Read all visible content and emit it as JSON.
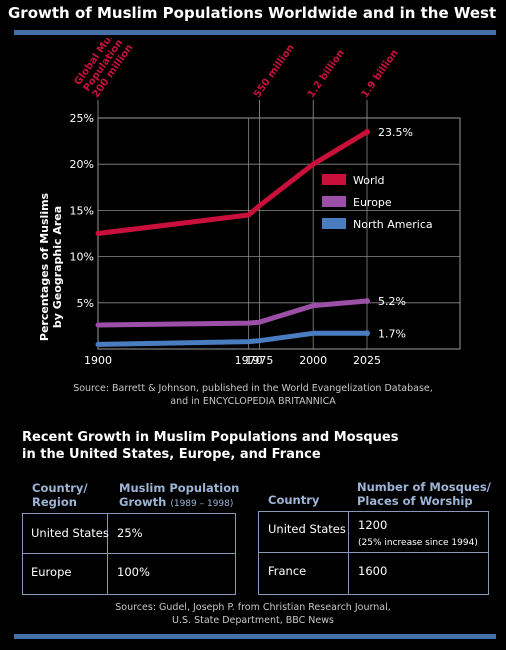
{
  "header": {
    "title": "Growth of Muslim Populations Worldwide and in the West"
  },
  "chart_data": {
    "type": "line",
    "x": [
      1900,
      1970,
      1975,
      2000,
      2025
    ],
    "x_tick_labels": [
      "1900",
      "1970",
      "1975",
      "2000",
      "2025"
    ],
    "ylim": [
      0,
      25
    ],
    "y_ticks": [
      5,
      10,
      15,
      20,
      25
    ],
    "y_tick_labels": [
      "5%",
      "10%",
      "15%",
      "20%",
      "25%"
    ],
    "ylabel_line1": "Percentages of Muslims",
    "ylabel_line2": "by Geographic Area",
    "grid": true,
    "legend_position": "right",
    "series": [
      {
        "name": "World",
        "color": "#c8103a",
        "values": [
          12.5,
          14.5,
          15.5,
          20.0,
          23.5
        ],
        "end_label": "23.5%"
      },
      {
        "name": "Europe",
        "color": "#9b4fa6",
        "values": [
          2.6,
          2.8,
          2.9,
          4.7,
          5.2
        ],
        "end_label": "5.2%"
      },
      {
        "name": "North America",
        "color": "#4a7cc0",
        "values": [
          0.5,
          0.8,
          0.9,
          1.7,
          1.7
        ],
        "end_label": "1.7%"
      }
    ],
    "top_annotations": [
      {
        "x": 1900,
        "lines": [
          "Global Muslim",
          "Population",
          "200 million"
        ]
      },
      {
        "x": 1975,
        "lines": [
          "550 million"
        ]
      },
      {
        "x": 2000,
        "lines": [
          "1.2 billion"
        ]
      },
      {
        "x": 2025,
        "lines": [
          "1.9 billion"
        ]
      }
    ],
    "annotation_color": "#c8103a",
    "source_line1": "Source: Barrett & Johnson, published in the World Evangelization Database,",
    "source_line2": "and in ENCYCLOPEDIA BRITANNICA"
  },
  "tables_section": {
    "title_line1": "Recent Growth in Muslim Populations and Mosques",
    "title_line2": "in the United States, Europe, and France",
    "table1": {
      "header_col1_line1": "Country/",
      "header_col1_line2": "Region",
      "header_col2_line1": "Muslim Population",
      "header_col2_line2": "Growth",
      "header_col2_small": "(1989 – 1998)",
      "rows": [
        {
          "region": "United States",
          "growth": "25%"
        },
        {
          "region": "Europe",
          "growth": "100%"
        }
      ]
    },
    "table2": {
      "header_col1": "Country",
      "header_col2_line1": "Number of Mosques/",
      "header_col2_line2": "Places of Worship",
      "rows": [
        {
          "country": "United States",
          "count": "1200",
          "note": "(25% increase since 1994)"
        },
        {
          "country": "France",
          "count": "1600",
          "note": ""
        }
      ]
    },
    "sources_line1": "Sources: Gudel, Joseph P. from Christian Research Journal,",
    "sources_line2": "U.S. State Department, BBC News"
  },
  "colors": {
    "rule": "#4671a8",
    "header_text": "#9db4d6",
    "table_border": "#8898b8"
  }
}
